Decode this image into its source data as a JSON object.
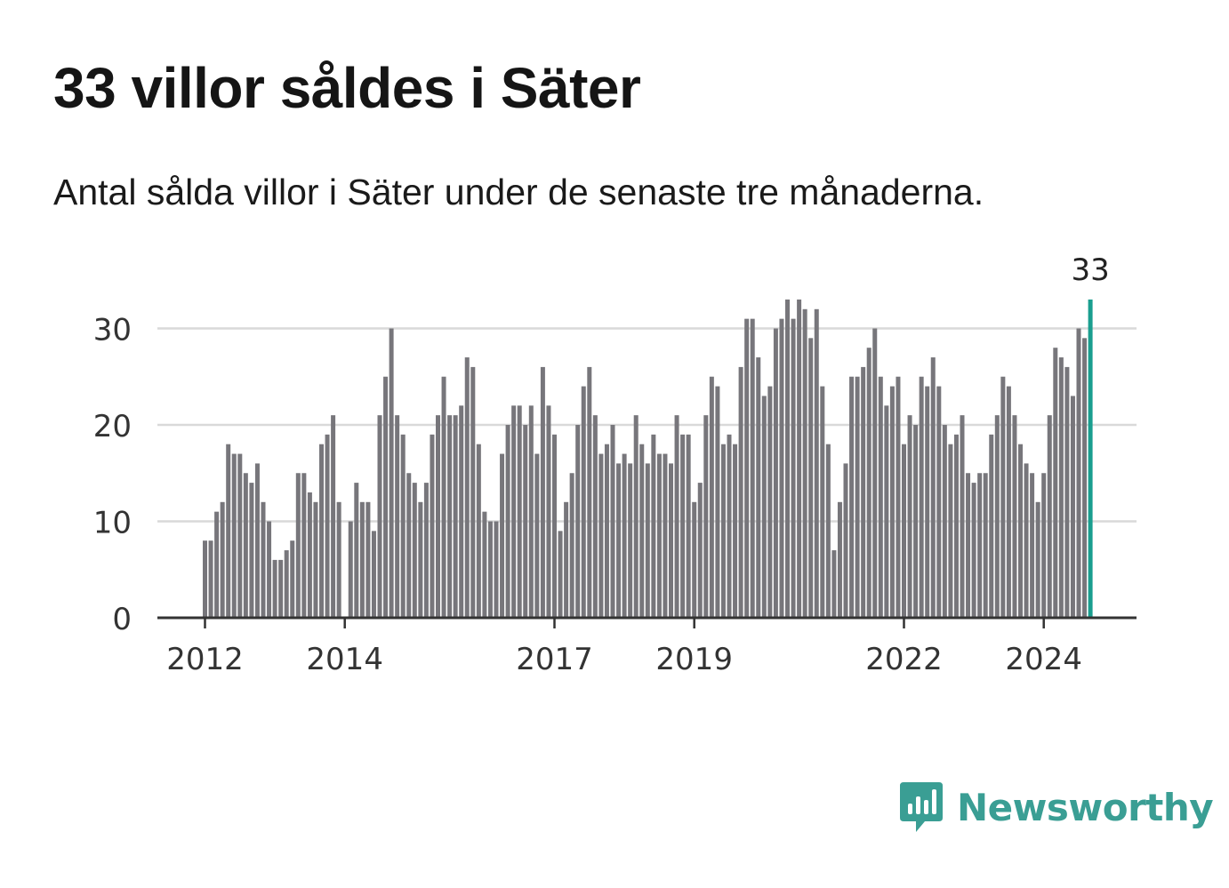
{
  "title": "33 villor såldes i Säter",
  "subtitle": "Antal sålda villor i Säter under de senaste tre månaderna.",
  "brand": {
    "name": "Newsworthy",
    "color": "#3a9e94",
    "icon": "newsworthy-logo-icon"
  },
  "colors": {
    "bar": "#77767b",
    "highlight": "#1a9e8f",
    "grid": "#d9d9d9",
    "axis": "#333333"
  },
  "chart_data": {
    "type": "bar",
    "title": "33 villor såldes i Säter",
    "xlabel": "",
    "ylabel": "",
    "ylim": [
      0,
      33
    ],
    "yticks": [
      0,
      10,
      20,
      30
    ],
    "grid": true,
    "start": "2012-01",
    "xtick_labels": [
      {
        "label": "2012",
        "index": 0
      },
      {
        "label": "2014",
        "index": 24
      },
      {
        "label": "2017",
        "index": 60
      },
      {
        "label": "2019",
        "index": 84
      },
      {
        "label": "2022",
        "index": 120
      },
      {
        "label": "2024",
        "index": 144
      }
    ],
    "values": [
      8,
      8,
      11,
      12,
      18,
      17,
      17,
      15,
      14,
      16,
      12,
      10,
      6,
      6,
      7,
      8,
      15,
      15,
      13,
      12,
      18,
      19,
      21,
      12,
      0,
      10,
      14,
      12,
      12,
      9,
      21,
      25,
      30,
      21,
      19,
      15,
      14,
      12,
      14,
      19,
      21,
      25,
      21,
      21,
      22,
      27,
      26,
      18,
      11,
      10,
      10,
      17,
      20,
      22,
      22,
      20,
      22,
      17,
      26,
      22,
      19,
      9,
      12,
      15,
      20,
      24,
      26,
      21,
      17,
      18,
      20,
      16,
      17,
      16,
      21,
      18,
      16,
      19,
      17,
      17,
      16,
      21,
      19,
      19,
      12,
      14,
      21,
      25,
      24,
      18,
      19,
      18,
      26,
      31,
      31,
      27,
      23,
      24,
      30,
      31,
      33,
      31,
      33,
      32,
      29,
      32,
      24,
      18,
      7,
      12,
      16,
      25,
      25,
      26,
      28,
      30,
      25,
      22,
      24,
      25,
      18,
      21,
      20,
      25,
      24,
      27,
      24,
      20,
      18,
      19,
      21,
      15,
      14,
      15,
      15,
      19,
      21,
      25,
      24,
      21,
      18,
      16,
      15,
      12,
      15,
      21,
      28,
      27,
      26,
      23,
      30,
      29,
      33
    ],
    "highlight_value": 33,
    "highlight_label": "33"
  }
}
